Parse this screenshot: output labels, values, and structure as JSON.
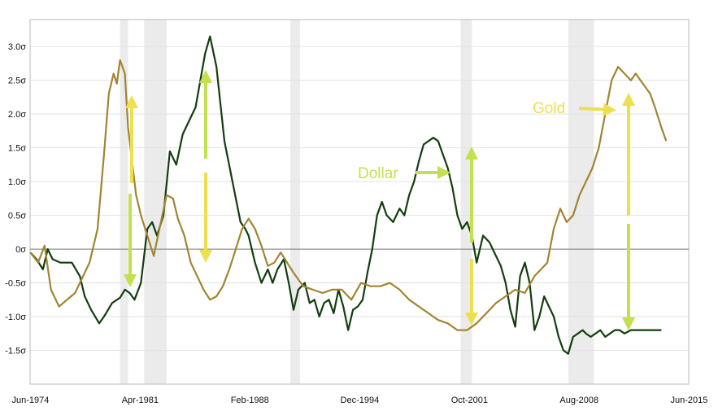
{
  "chart_data": {
    "type": "line",
    "title": "",
    "xlabel": "",
    "ylabel": "",
    "xlim": [
      1974.4,
      2015.4
    ],
    "ylim": [
      -2.0,
      3.4
    ],
    "grid": true,
    "y_ticks": [
      {
        "v": 3.0,
        "label": "3.0σ"
      },
      {
        "v": 2.5,
        "label": "2.5σ"
      },
      {
        "v": 2.0,
        "label": "2.0σ"
      },
      {
        "v": 1.5,
        "label": "1.5σ"
      },
      {
        "v": 1.0,
        "label": "1.0σ"
      },
      {
        "v": 0.5,
        "label": "0.5σ"
      },
      {
        "v": 0.0,
        "label": "0σ"
      },
      {
        "v": -0.5,
        "label": "-0.5σ"
      },
      {
        "v": -1.0,
        "label": "-1.0σ"
      },
      {
        "v": -1.5,
        "label": "-1.5σ"
      }
    ],
    "x_ticks": [
      {
        "v": 1974.42,
        "label": "Jun-1974"
      },
      {
        "v": 1981.25,
        "label": "Apr-1981"
      },
      {
        "v": 1988.08,
        "label": "Feb-1988"
      },
      {
        "v": 1994.92,
        "label": "Dec-1994"
      },
      {
        "v": 2001.75,
        "label": "Oct-2001"
      },
      {
        "v": 2008.58,
        "label": "Aug-2008"
      },
      {
        "v": 2015.42,
        "label": "Jun-2015"
      }
    ],
    "shaded_periods": [
      [
        1980.0,
        1980.5
      ],
      [
        1981.5,
        1982.9
      ],
      [
        1990.6,
        1991.2
      ],
      [
        2001.2,
        2001.9
      ],
      [
        2007.9,
        2009.5
      ]
    ],
    "annotations": [
      {
        "text": "Gold",
        "x": 2008.0,
        "y": 2.2,
        "color": "#ece051"
      },
      {
        "text": "Dollar",
        "x": 1995.0,
        "y": 1.15,
        "color": "#c3e04e"
      }
    ],
    "series": [
      {
        "color": "#123e0e",
        "x": [
          1974.42,
          1974.8,
          1975.2,
          1975.5,
          1975.8,
          1976.3,
          1977.0,
          1977.5,
          1977.8,
          1978.2,
          1978.7,
          1979.0,
          1979.5,
          1980.0,
          1980.3,
          1980.6,
          1980.9,
          1981.3,
          1981.7,
          1982.0,
          1982.3,
          1982.7,
          1983.1,
          1983.5,
          1983.9,
          1984.3,
          1984.7,
          1985.0,
          1985.3,
          1985.6,
          1986.0,
          1986.5,
          1987.0,
          1987.5,
          1987.8,
          1988.0,
          1988.4,
          1988.8,
          1989.2,
          1989.5,
          1989.8,
          1990.2,
          1990.5,
          1990.8,
          1991.1,
          1991.5,
          1991.8,
          1992.1,
          1992.4,
          1992.7,
          1993.0,
          1993.3,
          1993.6,
          1993.9,
          1994.2,
          1994.5,
          1994.8,
          1995.1,
          1995.4,
          1995.7,
          1996.0,
          1996.3,
          1996.6,
          1997.0,
          1997.4,
          1997.7,
          1998.0,
          1998.3,
          1998.6,
          1998.9,
          1999.2,
          1999.5,
          1999.8,
          2000.1,
          2000.4,
          2000.7,
          2001.0,
          2001.3,
          2001.6,
          2001.9,
          2002.2,
          2002.6,
          2003.0,
          2003.4,
          2003.7,
          2004.0,
          2004.3,
          2004.6,
          2004.9,
          2005.2,
          2005.5,
          2005.8,
          2006.1,
          2006.4,
          2006.7,
          2007.0,
          2007.3,
          2007.6,
          2007.9,
          2008.2,
          2008.5,
          2008.8,
          2009.0,
          2009.3,
          2009.6,
          2009.9,
          2010.2,
          2010.5,
          2010.8,
          2011.1,
          2011.4,
          2011.8,
          2012.2,
          2012.6,
          2013.0,
          2013.4,
          2013.7
        ],
        "values": [
          -0.05,
          -0.15,
          -0.3,
          0.0,
          -0.15,
          -0.2,
          -0.2,
          -0.4,
          -0.7,
          -0.9,
          -1.1,
          -1.0,
          -0.8,
          -0.72,
          -0.6,
          -0.65,
          -0.75,
          -0.5,
          0.3,
          0.4,
          0.2,
          0.5,
          1.45,
          1.25,
          1.7,
          1.9,
          2.1,
          2.5,
          2.9,
          3.15,
          2.7,
          1.6,
          1.0,
          0.4,
          0.3,
          0.2,
          -0.2,
          -0.5,
          -0.3,
          -0.5,
          -0.3,
          -0.15,
          -0.5,
          -0.9,
          -0.6,
          -0.5,
          -0.8,
          -0.75,
          -1.0,
          -0.8,
          -0.75,
          -0.95,
          -0.6,
          -0.85,
          -1.2,
          -0.9,
          -0.85,
          -0.75,
          -0.35,
          0.0,
          0.5,
          0.7,
          0.5,
          0.4,
          0.6,
          0.5,
          0.8,
          1.0,
          1.3,
          1.55,
          1.6,
          1.65,
          1.6,
          1.4,
          1.2,
          0.9,
          0.5,
          0.3,
          0.4,
          0.2,
          -0.2,
          0.2,
          0.1,
          -0.1,
          -0.25,
          -0.5,
          -0.9,
          -1.15,
          -0.4,
          -0.2,
          -0.5,
          -1.2,
          -1.0,
          -0.7,
          -0.85,
          -1.0,
          -1.3,
          -1.5,
          -1.55,
          -1.3,
          -1.25,
          -1.2,
          -1.25,
          -1.3,
          -1.25,
          -1.2,
          -1.3,
          -1.25,
          -1.2,
          -1.2,
          -1.25,
          -1.2,
          -1.2,
          -1.2,
          -1.2,
          -1.2,
          -1.2
        ],
        "x_trim_end": 2013.7
      },
      {
        "color": "#a28431",
        "x": [
          1974.42,
          1974.9,
          1975.3,
          1975.7,
          1976.2,
          1976.7,
          1977.2,
          1977.6,
          1978.1,
          1978.6,
          1979.0,
          1979.3,
          1979.6,
          1979.8,
          1980.0,
          1980.3,
          1980.5,
          1980.8,
          1981.0,
          1981.3,
          1981.7,
          1982.1,
          1982.5,
          1982.9,
          1983.3,
          1983.6,
          1984.0,
          1984.4,
          1984.8,
          1985.2,
          1985.6,
          1986.0,
          1986.4,
          1986.8,
          1987.2,
          1987.6,
          1988.0,
          1988.4,
          1988.8,
          1989.2,
          1989.6,
          1990.0,
          1990.4,
          1990.8,
          1991.4,
          1992.0,
          1992.6,
          1993.2,
          1993.8,
          1994.4,
          1995.0,
          1995.6,
          1996.2,
          1996.8,
          1997.4,
          1998.0,
          1998.6,
          1999.2,
          1999.8,
          2000.4,
          2001.0,
          2001.6,
          2002.2,
          2002.8,
          2003.4,
          2004.0,
          2004.6,
          2005.2,
          2005.8,
          2006.2,
          2006.6,
          2007.0,
          2007.4,
          2007.8,
          2008.2,
          2008.6,
          2009.0,
          2009.4,
          2009.8,
          2010.2,
          2010.6,
          2011.0,
          2011.4,
          2011.8,
          2012.1,
          2012.4,
          2012.7,
          2013.0,
          2013.3,
          2013.7,
          2014.0
        ],
        "values": [
          -0.05,
          -0.2,
          0.05,
          -0.6,
          -0.85,
          -0.75,
          -0.65,
          -0.45,
          -0.2,
          0.3,
          1.4,
          2.3,
          2.6,
          2.45,
          2.8,
          2.6,
          1.8,
          1.2,
          0.8,
          0.5,
          0.2,
          -0.1,
          0.35,
          0.8,
          0.75,
          0.45,
          0.2,
          -0.2,
          -0.4,
          -0.6,
          -0.75,
          -0.7,
          -0.55,
          -0.3,
          0.0,
          0.3,
          0.45,
          0.3,
          0.05,
          -0.25,
          -0.2,
          -0.05,
          -0.2,
          -0.35,
          -0.55,
          -0.6,
          -0.65,
          -0.6,
          -0.6,
          -0.75,
          -0.5,
          -0.55,
          -0.55,
          -0.5,
          -0.6,
          -0.75,
          -0.85,
          -0.95,
          -1.05,
          -1.1,
          -1.2,
          -1.2,
          -1.1,
          -0.95,
          -0.8,
          -0.7,
          -0.6,
          -0.65,
          -0.4,
          -0.3,
          -0.2,
          0.3,
          0.6,
          0.4,
          0.5,
          0.8,
          1.0,
          1.2,
          1.5,
          2.0,
          2.5,
          2.7,
          2.6,
          2.5,
          2.6,
          2.5,
          2.4,
          2.3,
          2.1,
          1.8,
          1.6
        ]
      }
    ]
  }
}
